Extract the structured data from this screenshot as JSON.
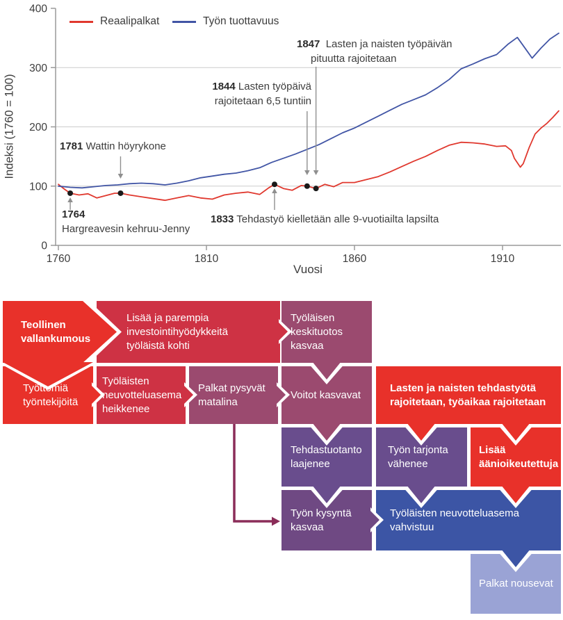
{
  "chart": {
    "legend": [
      {
        "label": "Reaalipalkat",
        "color": "#e0382e"
      },
      {
        "label": "Työn tuottavuus",
        "color": "#4155a5"
      }
    ],
    "y_axis_title": "Indeksi (1760 = 100)",
    "x_axis_title": "Vuosi",
    "y_ticks": [
      0,
      100,
      200,
      300,
      400
    ],
    "x_ticks": [
      1760,
      1810,
      1860,
      1910
    ],
    "gridlines": [
      100,
      200,
      300
    ],
    "colors": {
      "grid": "#cccccc",
      "axis": "#9a9a9a",
      "arrow": "#8f8f8f",
      "text": "#3d3d3d",
      "marker": "#1a1a1a"
    },
    "annotations": {
      "a1764": {
        "year": "1764",
        "line2": "Hargreavesin kehruu-Jenny",
        "arrow": {
          "year": 1764,
          "dir": "up",
          "from_y": 302,
          "to_y": 284
        }
      },
      "a1781": {
        "year": "1781",
        "text": "Wattin höyrykone",
        "arrow": {
          "year": 1781,
          "dir": "down",
          "from_y": 225,
          "to_y": 257
        }
      },
      "a1833": {
        "year": "1833",
        "text": "Tehdastyö kielletään alle 9-vuotiailta lapsilta",
        "arrow": {
          "year": 1833,
          "dir": "up",
          "from_y": 302,
          "to_y": 271
        }
      },
      "a1844": {
        "year": "1844",
        "line1": "Lasten työpäivä",
        "line2": "rajoitetaan 6,5 tuntiin",
        "arrow": {
          "year": 1844,
          "dir": "down",
          "from_y": 160,
          "to_y": 252
        }
      },
      "a1847": {
        "year": "1847",
        "line1": "Lasten ja naisten työpäivän",
        "line2": "pituutta rajoitetaan",
        "arrow": {
          "year": 1847,
          "dir": "down",
          "from_y": 96,
          "to_y": 252
        }
      }
    }
  },
  "chart_data": {
    "type": "line",
    "title": "",
    "xlabel": "Vuosi",
    "ylabel": "Indeksi (1760 = 100)",
    "xlim": [
      1759,
      1930
    ],
    "ylim": [
      0,
      400
    ],
    "grid": "horizontal",
    "legend_position": "top-left-inside",
    "series": [
      {
        "name": "Reaalipalkat",
        "color": "#e0382e",
        "points": [
          [
            1760,
            103
          ],
          [
            1762,
            95
          ],
          [
            1764,
            88
          ],
          [
            1767,
            85
          ],
          [
            1770,
            87
          ],
          [
            1773,
            80
          ],
          [
            1776,
            84
          ],
          [
            1779,
            88
          ],
          [
            1781,
            88
          ],
          [
            1784,
            85
          ],
          [
            1788,
            82
          ],
          [
            1792,
            79
          ],
          [
            1796,
            76
          ],
          [
            1800,
            80
          ],
          [
            1804,
            84
          ],
          [
            1808,
            80
          ],
          [
            1812,
            78
          ],
          [
            1816,
            85
          ],
          [
            1820,
            88
          ],
          [
            1824,
            90
          ],
          [
            1828,
            86
          ],
          [
            1831,
            97
          ],
          [
            1833,
            103
          ],
          [
            1836,
            96
          ],
          [
            1839,
            93
          ],
          [
            1842,
            101
          ],
          [
            1844,
            100
          ],
          [
            1847,
            96
          ],
          [
            1850,
            103
          ],
          [
            1853,
            99
          ],
          [
            1856,
            106
          ],
          [
            1860,
            106
          ],
          [
            1864,
            111
          ],
          [
            1868,
            116
          ],
          [
            1872,
            124
          ],
          [
            1876,
            133
          ],
          [
            1880,
            142
          ],
          [
            1884,
            150
          ],
          [
            1888,
            160
          ],
          [
            1892,
            169
          ],
          [
            1896,
            174
          ],
          [
            1900,
            173
          ],
          [
            1904,
            171
          ],
          [
            1908,
            167
          ],
          [
            1911,
            168
          ],
          [
            1913,
            160
          ],
          [
            1914,
            147
          ],
          [
            1916,
            132
          ],
          [
            1917,
            138
          ],
          [
            1919,
            165
          ],
          [
            1921,
            188
          ],
          [
            1923,
            198
          ],
          [
            1925,
            206
          ],
          [
            1927,
            216
          ],
          [
            1929,
            227
          ]
        ]
      },
      {
        "name": "Työn tuottavuus",
        "color": "#4155a5",
        "points": [
          [
            1760,
            100
          ],
          [
            1764,
            98
          ],
          [
            1768,
            97
          ],
          [
            1772,
            99
          ],
          [
            1776,
            101
          ],
          [
            1780,
            102
          ],
          [
            1784,
            104
          ],
          [
            1788,
            105
          ],
          [
            1792,
            104
          ],
          [
            1796,
            102
          ],
          [
            1800,
            105
          ],
          [
            1804,
            109
          ],
          [
            1808,
            114
          ],
          [
            1812,
            117
          ],
          [
            1816,
            120
          ],
          [
            1820,
            122
          ],
          [
            1824,
            126
          ],
          [
            1828,
            131
          ],
          [
            1832,
            140
          ],
          [
            1836,
            147
          ],
          [
            1840,
            154
          ],
          [
            1844,
            162
          ],
          [
            1848,
            170
          ],
          [
            1852,
            180
          ],
          [
            1856,
            190
          ],
          [
            1860,
            198
          ],
          [
            1864,
            208
          ],
          [
            1868,
            218
          ],
          [
            1872,
            228
          ],
          [
            1876,
            238
          ],
          [
            1880,
            246
          ],
          [
            1884,
            254
          ],
          [
            1888,
            266
          ],
          [
            1892,
            280
          ],
          [
            1896,
            298
          ],
          [
            1900,
            306
          ],
          [
            1904,
            315
          ],
          [
            1908,
            322
          ],
          [
            1912,
            340
          ],
          [
            1915,
            351
          ],
          [
            1918,
            330
          ],
          [
            1920,
            316
          ],
          [
            1923,
            333
          ],
          [
            1926,
            348
          ],
          [
            1929,
            358
          ]
        ]
      }
    ],
    "markers": [
      {
        "year": 1764,
        "value": 88
      },
      {
        "year": 1781,
        "value": 88
      },
      {
        "year": 1833,
        "value": 103
      },
      {
        "year": 1844,
        "value": 100
      },
      {
        "year": 1847,
        "value": 96
      }
    ]
  },
  "diagram": {
    "colors": {
      "bright_red": "#e8312a",
      "crimson": "#ce3244",
      "mauve": "#9b4a6f",
      "violet": "#694d8d",
      "purple": "#6f4983",
      "blue": "#3c55a5",
      "lavender": "#9aa3d5",
      "connector": "#8b2d59"
    },
    "boxes": [
      {
        "label": "Teollinen vallankumous",
        "bold": true
      },
      {
        "label": "Lisää ja parempia investointihyödykkeitä työläistä kohti",
        "bold": false
      },
      {
        "label": "Työläisen keskituotos kasvaa",
        "bold": false
      },
      {
        "label": "Työttömiä työntekijöitä",
        "bold": false
      },
      {
        "label": "Työläisten neuvotteluasema heikkenee",
        "bold": false
      },
      {
        "label": "Palkat pysyvät matalina",
        "bold": false
      },
      {
        "label": "Voitot kasvavat",
        "bold": false
      },
      {
        "label": "Lasten ja naisten tehdastyötä rajoitetaan, työaikaa rajoitetaan",
        "bold": true
      },
      {
        "label": "Tehdastuotanto laajenee",
        "bold": false
      },
      {
        "label": "Työn tarjonta vähenee",
        "bold": false
      },
      {
        "label": "Lisää äänioikeutettuja",
        "bold": true
      },
      {
        "label": "Työn kysyntä kasvaa",
        "bold": false
      },
      {
        "label": "Työläisten neuvotteluasema vahvistuu",
        "bold": false
      },
      {
        "label": "Palkat nousevat",
        "bold": false
      }
    ]
  }
}
